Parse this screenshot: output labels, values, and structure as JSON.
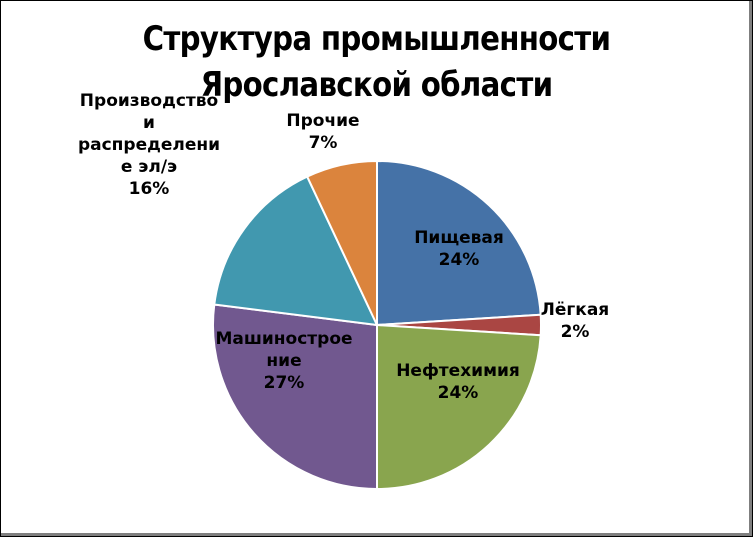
{
  "chart_data": {
    "type": "pie",
    "title": "Структура промышленности Ярославской области",
    "title_lines": [
      "Структура промышленности",
      "Ярославской области"
    ],
    "slices": [
      {
        "label": "Пищевая",
        "label_lines": [
          "Пищевая"
        ],
        "value": 24,
        "value_label": "24%",
        "color": "#4572A7"
      },
      {
        "label": "Лёгкая",
        "label_lines": [
          "Лёгкая"
        ],
        "value": 2,
        "value_label": "2%",
        "color": "#AA4643"
      },
      {
        "label": "Нефтехимия",
        "label_lines": [
          "Нефтехимия"
        ],
        "value": 24,
        "value_label": "24%",
        "color": "#89A54E"
      },
      {
        "label": "Машиностроение",
        "label_lines": [
          "Машинострое",
          "ние"
        ],
        "value": 27,
        "value_label": "27%",
        "color": "#71588F"
      },
      {
        "label": "Производство и распределение эл/э",
        "label_lines": [
          "Производство",
          "и",
          "распределени",
          "е эл/э"
        ],
        "value": 16,
        "value_label": "16%",
        "color": "#4198AF"
      },
      {
        "label": "Прочие",
        "label_lines": [
          "Прочие"
        ],
        "value": 7,
        "value_label": "7%",
        "color": "#DB843D"
      }
    ],
    "legend": "none"
  }
}
